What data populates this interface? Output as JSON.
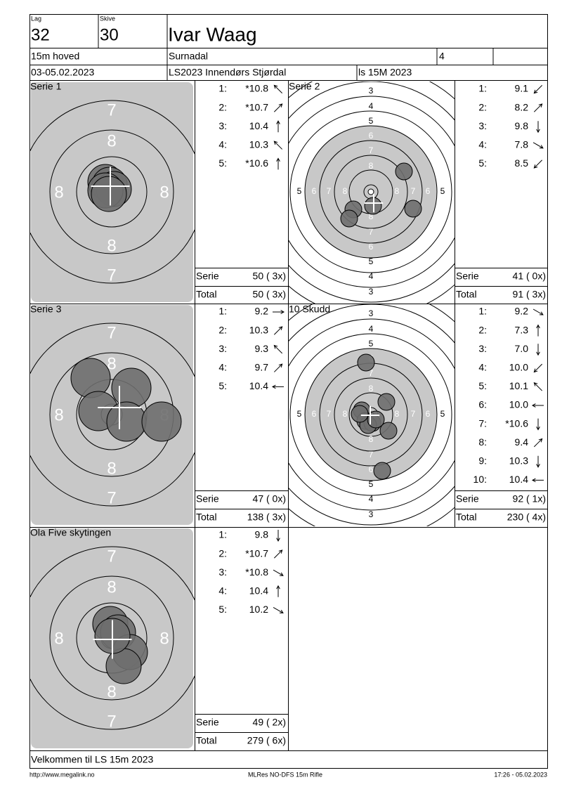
{
  "header": {
    "lag_label": "Lag",
    "lag": 32,
    "skive_label": "Skive",
    "skive": 30,
    "name": "Ivar Waag",
    "class": "15m hoved",
    "club": "Surnadal",
    "field": 4,
    "date": "03-05.02.2023",
    "event": "LS2023 Innendørs Stjørdal",
    "program": "ls 15M 2023"
  },
  "panels": [
    {
      "title": "Serie 1",
      "target": "zoom",
      "ring_labels": [
        7,
        8,
        8,
        8,
        8,
        7
      ],
      "shots": [
        {
          "n": "1:",
          "value": "*10.8",
          "dir": "nw"
        },
        {
          "n": "2:",
          "value": "*10.7",
          "dir": "ne"
        },
        {
          "n": "3:",
          "value": "10.4",
          "dir": "n"
        },
        {
          "n": "4:",
          "value": "10.3",
          "dir": "nw"
        },
        {
          "n": "5:",
          "value": "*10.6",
          "dir": "n"
        }
      ],
      "serie_label": "Serie",
      "serie": "50 ( 3x)",
      "total_label": "Total",
      "total": "50 ( 3x)"
    },
    {
      "title": "Serie 2",
      "target": "full",
      "ring_labels": {
        "top": [
          3,
          4,
          5,
          6,
          7,
          8
        ],
        "bottom": [
          8,
          7,
          6,
          5,
          4,
          3
        ],
        "left": [
          5,
          6,
          7,
          8
        ],
        "right": [
          8,
          7,
          6,
          5
        ]
      },
      "shots": [
        {
          "n": "1:",
          "value": "9.1",
          "dir": "sw"
        },
        {
          "n": "2:",
          "value": "8.2",
          "dir": "ne"
        },
        {
          "n": "3:",
          "value": "9.8",
          "dir": "s"
        },
        {
          "n": "4:",
          "value": "7.8",
          "dir": "se"
        },
        {
          "n": "5:",
          "value": "8.5",
          "dir": "sw"
        }
      ],
      "serie_label": "Serie",
      "serie": "41 ( 0x)",
      "total_label": "Total",
      "total": "91 ( 3x)"
    },
    {
      "title": "Serie 3",
      "target": "zoom",
      "ring_labels": [
        7,
        8,
        8,
        8,
        8,
        7
      ],
      "shots": [
        {
          "n": "1:",
          "value": "9.2",
          "dir": "e"
        },
        {
          "n": "2:",
          "value": "10.3",
          "dir": "ne"
        },
        {
          "n": "3:",
          "value": "9.3",
          "dir": "nw"
        },
        {
          "n": "4:",
          "value": "9.7",
          "dir": "ne"
        },
        {
          "n": "5:",
          "value": "10.4",
          "dir": "w"
        }
      ],
      "serie_label": "Serie",
      "serie": "47 ( 0x)",
      "total_label": "Total",
      "total": "138 ( 3x)"
    },
    {
      "title": "10 Skudd",
      "target": "full",
      "ring_labels": {
        "top": [
          3,
          4,
          5,
          6,
          7,
          8
        ],
        "bottom": [
          8,
          7,
          6,
          5,
          4,
          3
        ],
        "left": [
          5,
          6,
          7,
          8
        ],
        "right": [
          8,
          7,
          6,
          5
        ]
      },
      "shots": [
        {
          "n": "1:",
          "value": "9.2",
          "dir": "se"
        },
        {
          "n": "2:",
          "value": "7.3",
          "dir": "n"
        },
        {
          "n": "3:",
          "value": "7.0",
          "dir": "s"
        },
        {
          "n": "4:",
          "value": "10.0",
          "dir": "sw"
        },
        {
          "n": "5:",
          "value": "10.1",
          "dir": "nw"
        },
        {
          "n": "6:",
          "value": "10.0",
          "dir": "w"
        },
        {
          "n": "7:",
          "value": "*10.6",
          "dir": "s"
        },
        {
          "n": "8:",
          "value": "9.4",
          "dir": "ne"
        },
        {
          "n": "9:",
          "value": "10.3",
          "dir": "s"
        },
        {
          "n": "10:",
          "value": "10.4",
          "dir": "w"
        }
      ],
      "serie_label": "Serie",
      "serie": "92 ( 1x)",
      "total_label": "Total",
      "total": "230 ( 4x)"
    },
    {
      "title": "Ola Five skytingen",
      "target": "zoom",
      "ring_labels": [
        7,
        8,
        8,
        8,
        8,
        7
      ],
      "shots": [
        {
          "n": "1:",
          "value": "9.8",
          "dir": "s"
        },
        {
          "n": "2:",
          "value": "*10.7",
          "dir": "ne"
        },
        {
          "n": "3:",
          "value": "*10.8",
          "dir": "se"
        },
        {
          "n": "4:",
          "value": "10.4",
          "dir": "n"
        },
        {
          "n": "5:",
          "value": "10.2",
          "dir": "se"
        }
      ],
      "serie_label": "Serie",
      "serie": "49 ( 2x)",
      "total_label": "Total",
      "total": "279 ( 6x)"
    }
  ],
  "footer": {
    "message": "Velkommen til LS 15m 2023",
    "url": "http://www.megalink.no",
    "software": "MLRes NO-DFS 15m Rifle",
    "timestamp": "17:26 - 05.02.2023"
  }
}
